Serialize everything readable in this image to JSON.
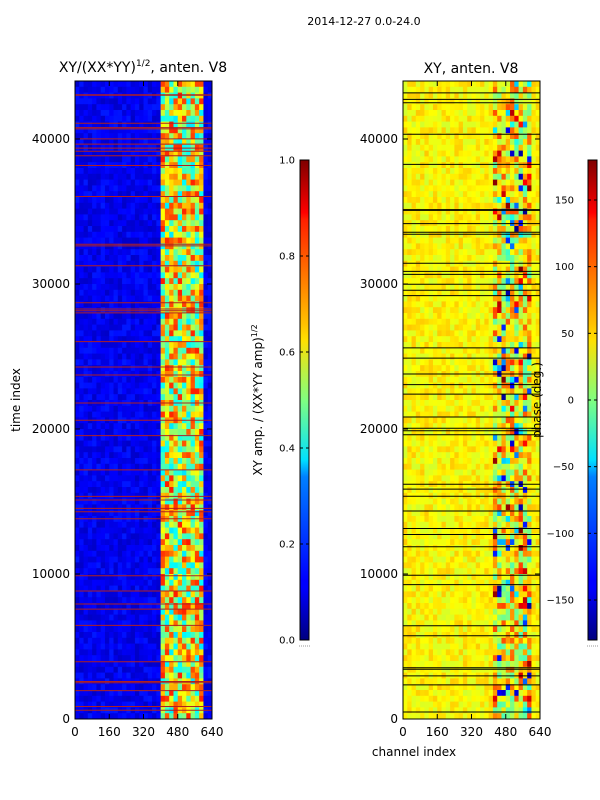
{
  "figure": {
    "suptitle": "2014-12-27 0.0-24.0"
  },
  "chart_data": [
    {
      "type": "heatmap",
      "title": "XY/(XX*YY)^{1/2}, anten. V8",
      "title_main": "XY/(XX*YY)",
      "title_sup": "1/2",
      "title_tail": ", anten. V8",
      "xlabel": "",
      "ylabel": "time index",
      "xlim": [
        0,
        640
      ],
      "ylim": [
        0,
        44000
      ],
      "xticks": [
        0,
        160,
        320,
        480,
        640
      ],
      "yticks": [
        0,
        10000,
        20000,
        30000,
        40000
      ],
      "colorbar": {
        "label": "XY amp. / (XX*YY amp)^{1/2}",
        "label_main": "XY amp. / (XX*YY amp)",
        "label_sup": "1/2",
        "range": [
          0.0,
          1.0
        ],
        "ticks": [
          "0.0",
          "0.2",
          "0.4",
          "0.6",
          "0.8",
          "1.0"
        ],
        "tick_values": [
          0.0,
          0.2,
          0.4,
          0.6,
          0.8,
          1.0
        ]
      }
    },
    {
      "type": "heatmap",
      "title": "XY, anten. V8",
      "xlabel": "channel index",
      "ylabel": "",
      "xlim": [
        0,
        640
      ],
      "ylim": [
        0,
        44000
      ],
      "xticks": [
        0,
        160,
        320,
        480,
        640
      ],
      "yticks": [
        0,
        10000,
        20000,
        30000,
        40000
      ],
      "colorbar": {
        "label": "phase (deg.)",
        "range": [
          -180,
          180
        ],
        "ticks": [
          "−150",
          "−100",
          "−50",
          "0",
          "50",
          "100",
          "150"
        ],
        "tick_values": [
          -150,
          -100,
          -50,
          0,
          50,
          100,
          150
        ]
      }
    }
  ]
}
